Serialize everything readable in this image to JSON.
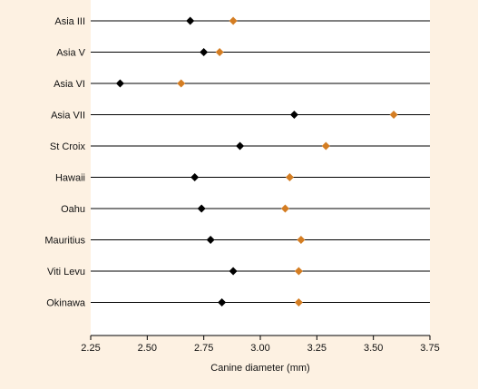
{
  "chart_data": {
    "type": "scatter",
    "title": "",
    "xlabel": "Canine diameter (mm)",
    "ylabel": "",
    "xlim": [
      2.25,
      3.75
    ],
    "xticks": [
      "2.25",
      "2.50",
      "2.75",
      "3.00",
      "3.25",
      "3.50",
      "3.75"
    ],
    "grid": "horizontal lines per category",
    "legend": "none",
    "categories": [
      "Asia III",
      "Asia V",
      "Asia VI",
      "Asia VII",
      "St Croix",
      "Hawaii",
      "Oahu",
      "Mauritius",
      "Viti Levu",
      "Okinawa"
    ],
    "series": [
      {
        "color": "#000000",
        "marker": "diamond",
        "values": [
          2.69,
          2.75,
          2.38,
          3.15,
          2.91,
          2.71,
          2.74,
          2.78,
          2.88,
          2.83
        ]
      },
      {
        "color": "#d47d22",
        "marker": "diamond",
        "values": [
          2.88,
          2.82,
          2.65,
          3.59,
          3.29,
          3.13,
          3.11,
          3.18,
          3.17,
          3.17
        ]
      }
    ]
  }
}
